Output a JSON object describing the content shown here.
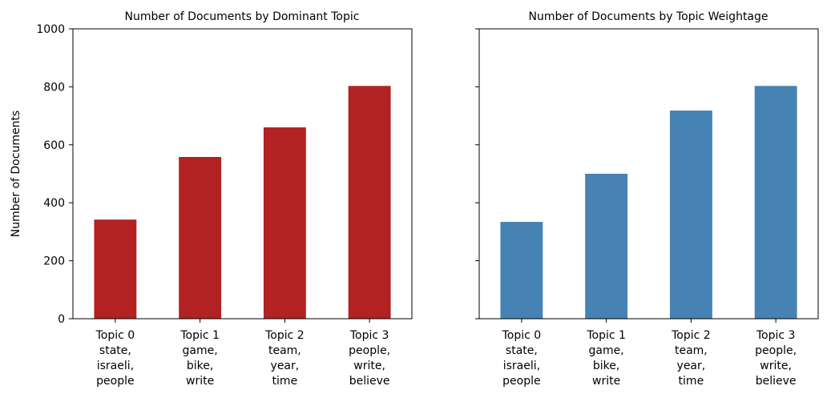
{
  "chart_data": [
    {
      "type": "bar",
      "title": "Number of Documents by Dominant Topic",
      "ylabel": "Number of Documents",
      "xlabel": "",
      "categories": [
        [
          "Topic 0",
          "state,",
          "israeli,",
          "people"
        ],
        [
          "Topic 1",
          "game,",
          "bike,",
          "write"
        ],
        [
          "Topic 2",
          "team,",
          "year,",
          "time"
        ],
        [
          "Topic 3",
          "people,",
          "write,",
          "believe"
        ]
      ],
      "values": [
        342,
        558,
        660,
        803
      ],
      "ylim": [
        0,
        1000
      ],
      "yticks": [
        "0",
        "200",
        "400",
        "600",
        "800",
        "1000"
      ],
      "grid": false,
      "color": "#b22222"
    },
    {
      "type": "bar",
      "title": "Number of Documents by Topic Weightage",
      "ylabel": "",
      "xlabel": "",
      "categories": [
        [
          "Topic 0",
          "state,",
          "israeli,",
          "people"
        ],
        [
          "Topic 1",
          "game,",
          "bike,",
          "write"
        ],
        [
          "Topic 2",
          "team,",
          "year,",
          "time"
        ],
        [
          "Topic 3",
          "people,",
          "write,",
          "believe"
        ]
      ],
      "values": [
        334,
        500,
        718,
        803
      ],
      "ylim": [
        0,
        1000
      ],
      "yticks": [],
      "grid": false,
      "color": "#4682b4"
    }
  ]
}
